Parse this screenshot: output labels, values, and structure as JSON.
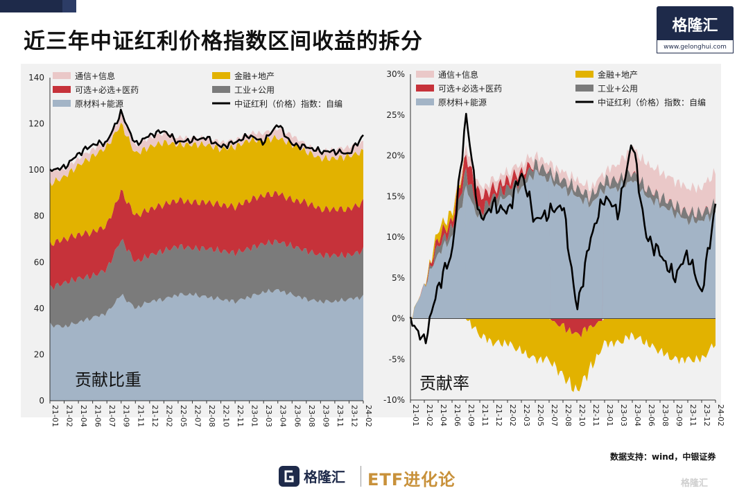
{
  "page": {
    "title": "近三年中证红利价格指数区间收益的拆分",
    "logo_text": "格隆汇",
    "logo_url": "www.gelonghui.com",
    "source": "数据支持：wind，中银证券",
    "bottom_logo_text": "格隆汇",
    "bottom_etf": "ETF进化论",
    "corner_mark": "格隆汇"
  },
  "colors": {
    "telecom": "#eac8c8",
    "finance": "#e2b200",
    "consumer": "#c6323a",
    "industry": "#7b7b7b",
    "materials": "#a3b4c6",
    "index": "#000000"
  },
  "chart_data": [
    {
      "type": "area",
      "title": "贡献比重",
      "xlabel": "",
      "ylabel": "",
      "ylim": [
        0,
        140
      ],
      "yticks": [
        0,
        20,
        40,
        60,
        80,
        100,
        120,
        140
      ],
      "categories": [
        "21-01",
        "21-02",
        "21-04",
        "21-06",
        "21-07",
        "21-09",
        "21-11",
        "21-12",
        "22-02",
        "22-05",
        "22-07",
        "22-08",
        "22-10",
        "22-11",
        "23-01",
        "23-03",
        "23-04",
        "23-06",
        "23-08",
        "23-09",
        "23-11",
        "23-12",
        "24-02"
      ],
      "legend": [
        "通信+信息",
        "金融+地产",
        "可选+必选+医药",
        "工业+公用",
        "原材料+能源",
        "中证红利（价格）指数：自编"
      ],
      "series": [
        {
          "name": "原材料+能源",
          "values": [
            33,
            32,
            34,
            36,
            38,
            46,
            40,
            43,
            44,
            46,
            46,
            45,
            44,
            43,
            45,
            47,
            48,
            46,
            44,
            43,
            43,
            44,
            45
          ]
        },
        {
          "name": "工业+公用",
          "values": [
            16,
            19,
            19,
            18,
            19,
            24,
            20,
            20,
            21,
            21,
            20,
            21,
            21,
            21,
            21,
            21,
            21,
            21,
            21,
            20,
            20,
            19,
            20
          ]
        },
        {
          "name": "可选+必选+医药",
          "values": [
            19,
            19,
            19,
            19,
            19,
            21,
            20,
            20,
            20,
            20,
            20,
            20,
            20,
            20,
            21,
            21,
            21,
            20,
            21,
            20,
            20,
            20,
            21
          ]
        },
        {
          "name": "金融+地产",
          "values": [
            26,
            27,
            30,
            33,
            34,
            29,
            27,
            27,
            27,
            24,
            25,
            25,
            24,
            26,
            26,
            24,
            24,
            24,
            22,
            22,
            22,
            23,
            22
          ]
        },
        {
          "name": "通信+信息",
          "values": [
            6,
            3,
            3,
            3,
            2,
            4,
            3,
            4,
            4,
            3,
            3,
            3,
            3,
            3,
            3,
            3,
            4,
            4,
            3,
            3,
            4,
            4,
            4
          ]
        },
        {
          "name": "中证红利（价格）指数：自编",
          "values": [
            100,
            101,
            107,
            111,
            112,
            125,
            111,
            115,
            117,
            112,
            113,
            114,
            110,
            112,
            115,
            112,
            120,
            111,
            110,
            108,
            108,
            107,
            115
          ]
        }
      ]
    },
    {
      "type": "area",
      "title": "贡献率",
      "xlabel": "",
      "ylabel": "",
      "ylim": [
        -10,
        30
      ],
      "yticks": [
        "-10%",
        "-5%",
        "0%",
        "5%",
        "10%",
        "15%",
        "20%",
        "25%",
        "30%"
      ],
      "categories": [
        "21-01",
        "21-02",
        "21-04",
        "21-06",
        "21-09",
        "21-11",
        "21-12",
        "22-02",
        "22-03",
        "22-05",
        "22-07",
        "22-08",
        "22-10",
        "22-11",
        "23-01",
        "23-03",
        "23-04",
        "23-06",
        "23-08",
        "23-09",
        "23-11",
        "23-12",
        "24-02"
      ],
      "legend": [
        "通信+信息",
        "金融+地产",
        "可选+必选+医药",
        "工业+公用",
        "原材料+能源",
        "中证红利（价格）指数：自编"
      ],
      "series": [
        {
          "name": "原材料+能源",
          "values": [
            0,
            4,
            8,
            10,
            16,
            12,
            14,
            15,
            16,
            18,
            17,
            16,
            15,
            14,
            16,
            16,
            17,
            15,
            14,
            13,
            12,
            12,
            13
          ]
        },
        {
          "name": "工业+公用",
          "values": [
            0,
            0,
            1,
            1,
            2,
            1,
            1,
            1,
            1,
            1,
            1,
            1,
            1,
            1,
            1,
            1,
            1,
            1,
            1,
            1,
            1,
            1,
            1
          ]
        },
        {
          "name": "可选+必选+医药",
          "values": [
            0,
            0,
            1,
            1,
            2,
            2,
            1,
            1,
            1,
            0,
            0,
            -1,
            -2,
            -1,
            0,
            0,
            0,
            0,
            0,
            0,
            0,
            0,
            0
          ]
        },
        {
          "name": "金融+地产",
          "values": [
            0,
            0,
            1,
            1,
            0,
            -2,
            -3,
            -3,
            -4,
            -5,
            -5,
            -6,
            -7,
            -5,
            -3,
            -3,
            -2,
            -3,
            -4,
            -5,
            -5,
            -5,
            -3
          ]
        },
        {
          "name": "通信+信息",
          "values": [
            0,
            0,
            0,
            0,
            1,
            1,
            1,
            1,
            1,
            1,
            1,
            1,
            1,
            1,
            1,
            2,
            3,
            3,
            3,
            3,
            3,
            3,
            4
          ]
        },
        {
          "name": "中证红利（价格）指数：自编",
          "values": [
            0,
            -3,
            4,
            8,
            25,
            12,
            14,
            13,
            18,
            12,
            13,
            14,
            1,
            10,
            15,
            13,
            22,
            10,
            8,
            5,
            8,
            3,
            14
          ]
        }
      ]
    }
  ]
}
